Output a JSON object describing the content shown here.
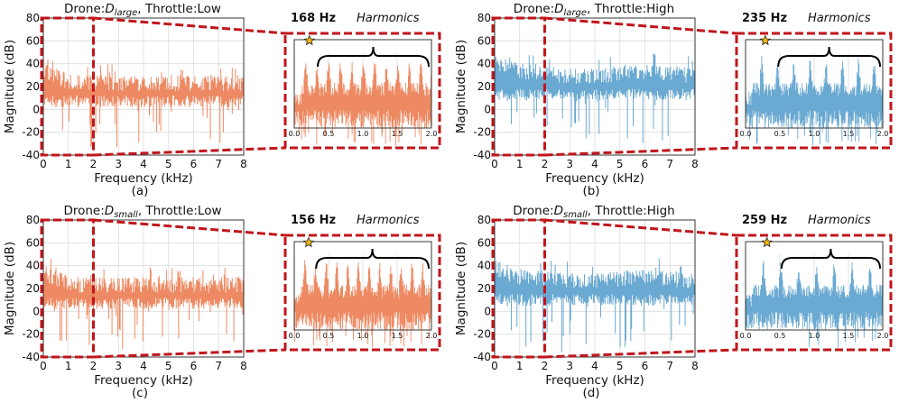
{
  "colors": {
    "low": "#ee8a63",
    "high": "#6aa9d1",
    "zoom_box": "#c0161b",
    "star": "#f2b90d"
  },
  "chart_data": [
    {
      "type": "area",
      "id": "a",
      "caption": "(a)",
      "title_prefix": "Drone:",
      "drone_base": "D",
      "drone_sub": "large",
      "title_suffix": ", Throttle:Low",
      "throttle": "low",
      "xlabel": "Frequency (kHz)",
      "ylabel": "Magnitude (dB)",
      "xlim": [
        0,
        8
      ],
      "ylim": [
        -40,
        80
      ],
      "xticks": [
        "0",
        "1",
        "2",
        "3",
        "4",
        "5",
        "6",
        "7",
        "8"
      ],
      "yticks": [
        "-40",
        "-20",
        "0",
        "20",
        "40",
        "60",
        "80"
      ],
      "envelope": {
        "upper_db": 30,
        "lower_db": 2,
        "min_spike_db": -35
      },
      "zoom": {
        "xlim": [
          0,
          2
        ],
        "xticks": [
          "0.0",
          "0.5",
          "1.0",
          "1.5",
          "2.0"
        ],
        "fundamental_label": "168 Hz",
        "fundamental_khz": 0.168,
        "harmonics_label": "Harmonics"
      }
    },
    {
      "type": "area",
      "id": "b",
      "caption": "(b)",
      "title_prefix": "Drone:",
      "drone_base": "D",
      "drone_sub": "large",
      "title_suffix": ", Throttle:High",
      "throttle": "high",
      "xlabel": "Frequency (kHz)",
      "ylabel": "Magnitude (dB)",
      "xlim": [
        0,
        8
      ],
      "ylim": [
        -40,
        80
      ],
      "xticks": [
        "0",
        "1",
        "2",
        "3",
        "4",
        "5",
        "6",
        "7",
        "8"
      ],
      "yticks": [
        "-40",
        "-20",
        "0",
        "20",
        "40",
        "60",
        "80"
      ],
      "envelope": {
        "upper_db": 38,
        "lower_db": 8,
        "min_spike_db": -30
      },
      "zoom": {
        "xlim": [
          0,
          2
        ],
        "xticks": [
          "0.0",
          "0.5",
          "1.0",
          "1.5",
          "2.0"
        ],
        "fundamental_label": "235 Hz",
        "fundamental_khz": 0.235,
        "harmonics_label": "Harmonics"
      }
    },
    {
      "type": "area",
      "id": "c",
      "caption": "(c)",
      "title_prefix": "Drone:",
      "drone_base": "D",
      "drone_sub": "small",
      "title_suffix": ", Throttle:Low",
      "throttle": "low",
      "xlabel": "Frequency (kHz)",
      "ylabel": "Magnitude (dB)",
      "xlim": [
        0,
        8
      ],
      "ylim": [
        -40,
        80
      ],
      "xticks": [
        "0",
        "1",
        "2",
        "3",
        "4",
        "5",
        "6",
        "7",
        "8"
      ],
      "yticks": [
        "-40",
        "-20",
        "0",
        "20",
        "40",
        "60",
        "80"
      ],
      "envelope": {
        "upper_db": 30,
        "lower_db": 2,
        "min_spike_db": -35
      },
      "zoom": {
        "xlim": [
          0,
          2
        ],
        "xticks": [
          "0.0",
          "0.5",
          "1.0",
          "1.5",
          "2.0"
        ],
        "fundamental_label": "156 Hz",
        "fundamental_khz": 0.156,
        "harmonics_label": "Harmonics"
      }
    },
    {
      "type": "area",
      "id": "d",
      "caption": "(d)",
      "title_prefix": "Drone:",
      "drone_base": "D",
      "drone_sub": "small",
      "title_suffix": ", Throttle:High",
      "throttle": "high",
      "xlabel": "Frequency (kHz)",
      "ylabel": "Magnitude (dB)",
      "xlim": [
        0,
        8
      ],
      "ylim": [
        -40,
        80
      ],
      "xticks": [
        "0",
        "1",
        "2",
        "3",
        "4",
        "5",
        "6",
        "7",
        "8"
      ],
      "yticks": [
        "-40",
        "-20",
        "0",
        "20",
        "40",
        "60",
        "80"
      ],
      "envelope": {
        "upper_db": 35,
        "lower_db": 5,
        "min_spike_db": -38
      },
      "zoom": {
        "xlim": [
          0,
          2
        ],
        "xticks": [
          "0.0",
          "0.5",
          "1.0",
          "1.5",
          "2.0"
        ],
        "fundamental_label": "259 Hz",
        "fundamental_khz": 0.259,
        "harmonics_label": "Harmonics"
      }
    }
  ]
}
